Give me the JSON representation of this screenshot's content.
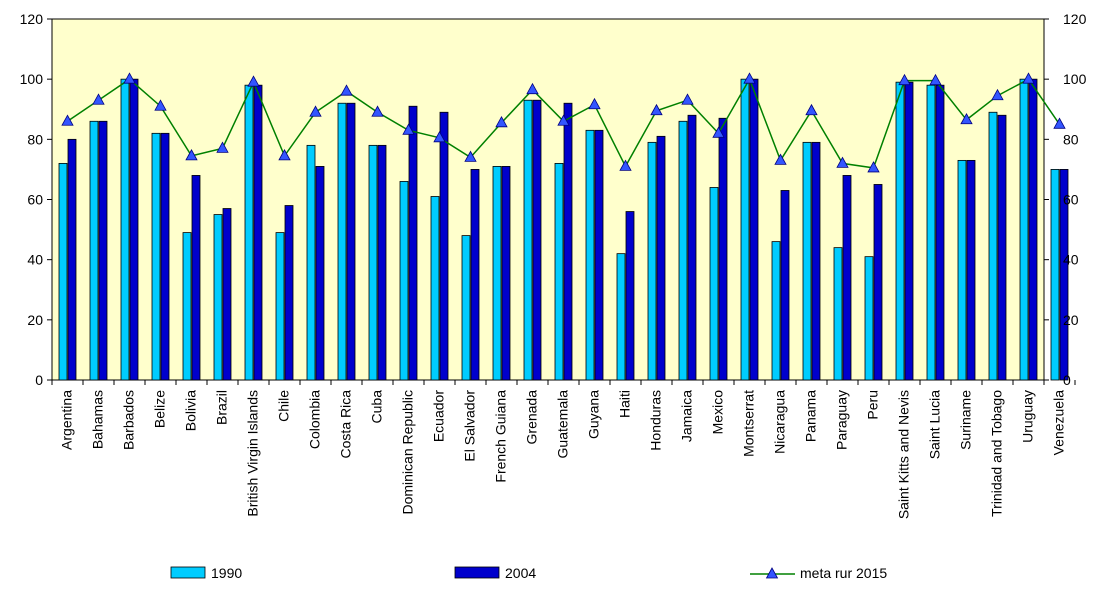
{
  "chart_data": {
    "type": "bar",
    "title": "",
    "xlabel": "",
    "ylabel": "",
    "ylim": [
      0,
      120
    ],
    "y_ticks": [
      "0",
      "20",
      "40",
      "60",
      "80",
      "100",
      "120"
    ],
    "secondary_ylim": [
      0,
      120
    ],
    "grid": false,
    "legend_position": "bottom",
    "plot_background": "#ffffcc",
    "categories": [
      "Argentina",
      "Bahamas",
      "Barbados",
      "Belize",
      "Bolivia",
      "Brazil",
      "British Virgin Islands",
      "Chile",
      "Colombia",
      "Costa Rica",
      "Cuba",
      "Dominican Republic",
      "Ecuador",
      "El Salvador",
      "French Guiana",
      "Grenada",
      "Guatemala",
      "Guyana",
      "Haiti",
      "Honduras",
      "Jamaica",
      "Mexico",
      "Montserrat",
      "Nicaragua",
      "Panama",
      "Paraguay",
      "Peru",
      "Saint Kitts and Nevis",
      "Saint Lucia",
      "Suriname",
      "Trinidad and Tobago",
      "Uruguay",
      "Venezuela"
    ],
    "series": [
      {
        "name": "1990",
        "type": "bar",
        "color": "#00ccff",
        "values": [
          72,
          86,
          100,
          82,
          49,
          55,
          98,
          49,
          78,
          92,
          78,
          66,
          61,
          48,
          71,
          93,
          72,
          83,
          42,
          79,
          86,
          64,
          100,
          46,
          79,
          44,
          41,
          99,
          98,
          73,
          89,
          100,
          70
        ]
      },
      {
        "name": "2004",
        "type": "bar",
        "color": "#0000cc",
        "values": [
          80,
          86,
          100,
          82,
          68,
          57,
          98,
          58,
          71,
          92,
          78,
          91,
          89,
          70,
          71,
          93,
          92,
          83,
          56,
          81,
          88,
          87,
          100,
          63,
          79,
          68,
          65,
          99,
          98,
          73,
          88,
          100,
          70
        ]
      },
      {
        "name": "meta rur 2015",
        "type": "line",
        "color": "#008000",
        "marker_color": "#3355ff",
        "values": [
          86,
          93,
          100,
          91,
          74.5,
          77,
          99,
          74.5,
          89,
          96,
          89,
          83,
          80.5,
          74,
          85.5,
          96.5,
          86,
          91.5,
          71,
          89.5,
          93,
          82,
          100,
          73,
          89.5,
          72,
          70.5,
          99.5,
          99.5,
          86.5,
          94.5,
          100,
          85
        ]
      }
    ]
  }
}
